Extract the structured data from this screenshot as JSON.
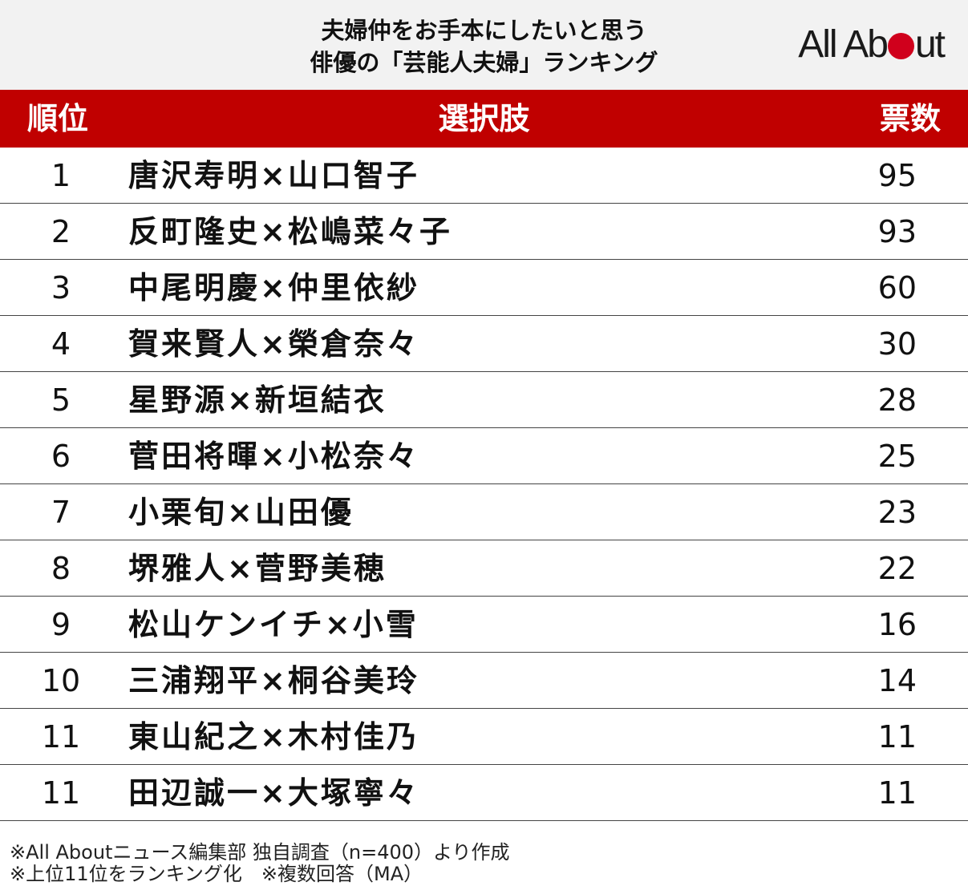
{
  "header": {
    "title_line1": "夫婦仲をお手本にしたいと思う",
    "title_line2": "俳優の「芸能人夫婦」ランキング",
    "logo_text_before": "All Ab",
    "logo_text_after": "ut",
    "logo_dot_color": "#d0001c"
  },
  "colors": {
    "header_band": "#c00000",
    "title_background": "#f2f2f2"
  },
  "chart_data": {
    "type": "table",
    "title": "夫婦仲をお手本にしたいと思う 俳優の「芸能人夫婦」ランキング",
    "columns": [
      "順位",
      "選択肢",
      "票数"
    ],
    "rows": [
      {
        "rank": "1",
        "choice": "唐沢寿明×山口智子",
        "votes": "95"
      },
      {
        "rank": "2",
        "choice": "反町隆史×松嶋菜々子",
        "votes": "93"
      },
      {
        "rank": "3",
        "choice": "中尾明慶×仲里依紗",
        "votes": "60"
      },
      {
        "rank": "4",
        "choice": "賀来賢人×榮倉奈々",
        "votes": "30"
      },
      {
        "rank": "5",
        "choice": "星野源×新垣結衣",
        "votes": "28"
      },
      {
        "rank": "6",
        "choice": "菅田将暉×小松奈々",
        "votes": "25"
      },
      {
        "rank": "7",
        "choice": "小栗旬×山田優",
        "votes": "23"
      },
      {
        "rank": "8",
        "choice": "堺雅人×菅野美穂",
        "votes": "22"
      },
      {
        "rank": "9",
        "choice": "松山ケンイチ×小雪",
        "votes": "16"
      },
      {
        "rank": "10",
        "choice": "三浦翔平×桐谷美玲",
        "votes": "14"
      },
      {
        "rank": "11",
        "choice": "東山紀之×木村佳乃",
        "votes": "11"
      },
      {
        "rank": "11",
        "choice": "田辺誠一×大塚寧々",
        "votes": "11"
      }
    ]
  },
  "notes": {
    "line1": "※All Aboutニュース編集部 独自調査（n=400）より作成",
    "line2": "※上位11位をランキング化　※複数回答（MA）"
  }
}
